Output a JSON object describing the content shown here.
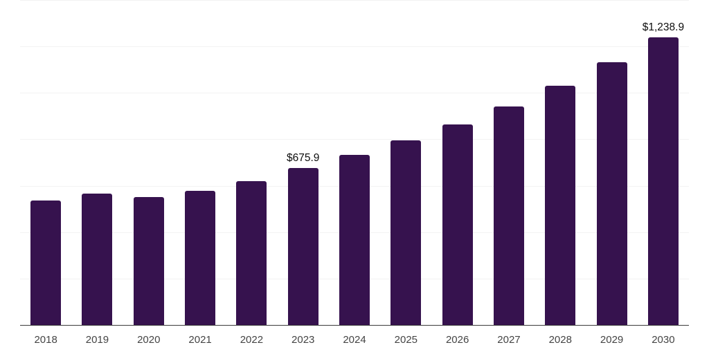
{
  "chart_data": {
    "type": "bar",
    "title": "",
    "xlabel": "",
    "ylabel": "",
    "categories": [
      "2018",
      "2019",
      "2020",
      "2021",
      "2022",
      "2023",
      "2024",
      "2025",
      "2026",
      "2027",
      "2028",
      "2029",
      "2030"
    ],
    "values": [
      536.9,
      566.8,
      551.9,
      578.7,
      620.5,
      675.9,
      733.8,
      796.5,
      865.1,
      942.6,
      1032.1,
      1130.6,
      1238.9
    ],
    "data_labels": [
      "",
      "",
      "",
      "",
      "",
      "$675.9",
      "",
      "",
      "",
      "",
      "",
      "",
      "$1,238.9"
    ],
    "ylim": [
      0,
      1400
    ],
    "gridline_step": 200,
    "grid": true,
    "legend": false,
    "y_tick_labels_visible": false,
    "colors": {
      "bar": "#36124e",
      "gridline": "#f2f2f2",
      "axis": "#3a3a3a",
      "tick_label": "#444444",
      "data_label": "#0d0d0d",
      "background": "#ffffff"
    }
  }
}
